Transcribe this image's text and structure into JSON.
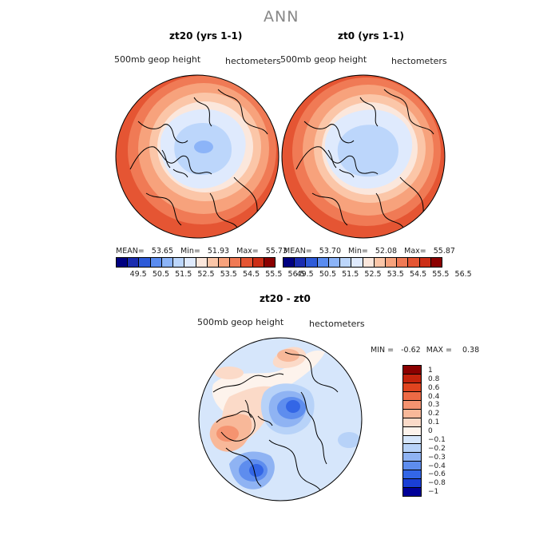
{
  "title": "ANN",
  "chart_data": [
    {
      "type": "heatmap",
      "title": "zt20 (yrs 1-1)",
      "subtitle_left": "500mb geop height",
      "subtitle_right": "hectometers",
      "projection": "north polar stereographic",
      "stats": {
        "mean_label": "MEAN=",
        "mean": "53.65",
        "min_label": "Min=",
        "min": "51.93",
        "max_label": "Max=",
        "max": "55.73"
      },
      "levels": [
        "49.5",
        "50.5",
        "51.5",
        "52.5",
        "53.5",
        "54.5",
        "55.5",
        "56.5"
      ],
      "colors": [
        "#000080",
        "#1a2cb0",
        "#2e5bd8",
        "#5a8cf0",
        "#8cb4f8",
        "#bcd6fb",
        "#dfeafd",
        "#fbe7dc",
        "#fbc6a8",
        "#f7a27c",
        "#f07a55",
        "#e55533",
        "#cc2e16",
        "#8b0000"
      ]
    },
    {
      "type": "heatmap",
      "title": "zt0 (yrs 1-1)",
      "subtitle_left": "500mb geop height",
      "subtitle_right": "hectometers",
      "projection": "north polar stereographic",
      "stats": {
        "mean_label": "MEAN=",
        "mean": "53.70",
        "min_label": "Min=",
        "min": "52.08",
        "max_label": "Max=",
        "max": "55.87"
      },
      "levels": [
        "49.5",
        "50.5",
        "51.5",
        "52.5",
        "53.5",
        "54.5",
        "55.5",
        "56.5"
      ],
      "colors": [
        "#000080",
        "#1a2cb0",
        "#2e5bd8",
        "#5a8cf0",
        "#8cb4f8",
        "#bcd6fb",
        "#dfeafd",
        "#fbe7dc",
        "#fbc6a8",
        "#f7a27c",
        "#f07a55",
        "#e55533",
        "#cc2e16",
        "#8b0000"
      ]
    },
    {
      "type": "heatmap",
      "title": "zt20 - zt0",
      "subtitle_left": "500mb geop height",
      "subtitle_right": "hectometers",
      "projection": "north polar stereographic",
      "stats": {
        "min_label": "MIN =",
        "min": "-0.62",
        "max_label": "MAX =",
        "max": "0.38"
      },
      "levels": [
        "1",
        "0.8",
        "0.6",
        "0.4",
        "0.3",
        "0.2",
        "0.1",
        "0",
        "−0.1",
        "−0.2",
        "−0.3",
        "−0.4",
        "−0.6",
        "−0.8",
        "−1"
      ],
      "colors": [
        "#8b0000",
        "#c4230c",
        "#e0441f",
        "#ee6a45",
        "#f59370",
        "#f8b899",
        "#fbdac8",
        "#fdf3ec",
        "#d6e6fb",
        "#b7d2f8",
        "#8fb3f3",
        "#5e8dee",
        "#3366e6",
        "#1a3fd6",
        "#000098"
      ]
    }
  ]
}
